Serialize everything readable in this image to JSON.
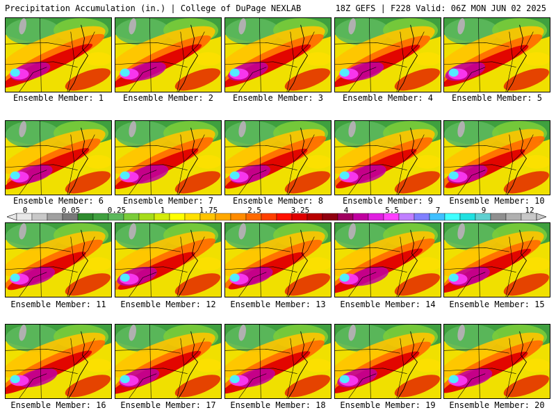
{
  "header": {
    "left_title": "Precipitation Accumulation (in.) | College of DuPage NEXLAB",
    "right_title": "18Z GEFS | F228 Valid: 06Z MON JUN 02 2025"
  },
  "panels": [
    {
      "label": "Ensemble Member: 1"
    },
    {
      "label": "Ensemble Member: 2"
    },
    {
      "label": "Ensemble Member: 3"
    },
    {
      "label": "Ensemble Member: 4"
    },
    {
      "label": "Ensemble Member: 5"
    },
    {
      "label": "Ensemble Member: 6"
    },
    {
      "label": "Ensemble Member: 7"
    },
    {
      "label": "Ensemble Member: 8"
    },
    {
      "label": "Ensemble Member: 9"
    },
    {
      "label": "Ensemble Member: 10"
    },
    {
      "label": "Ensemble Member: 11"
    },
    {
      "label": "Ensemble Member: 12"
    },
    {
      "label": "Ensemble Member: 13"
    },
    {
      "label": "Ensemble Member: 14"
    },
    {
      "label": "Ensemble Member: 15"
    },
    {
      "label": "Ensemble Member: 16"
    },
    {
      "label": "Ensemble Member: 17"
    },
    {
      "label": "Ensemble Member: 18"
    },
    {
      "label": "Ensemble Member: 19"
    },
    {
      "label": "Ensemble Member: 20"
    }
  ],
  "colorbar": {
    "tick_labels": [
      "0",
      "0.05",
      "0.25",
      "1",
      "1.75",
      "2.5",
      "3.25",
      "4",
      "5.5",
      "7",
      "9",
      "12"
    ],
    "colors": [
      "#e8e8e8",
      "#c8c8c8",
      "#a0a0a0",
      "#7a7a7a",
      "#2e8b2e",
      "#3fa03f",
      "#5cb85c",
      "#7acc3a",
      "#a6dc1a",
      "#d4ec0a",
      "#ffff00",
      "#ffe000",
      "#ffc400",
      "#ffa800",
      "#ff8c00",
      "#ff6a00",
      "#ff4000",
      "#ff1000",
      "#e00000",
      "#b80000",
      "#900010",
      "#a00060",
      "#c000a0",
      "#e020e0",
      "#ff40ff",
      "#c080ff",
      "#8080ff",
      "#40c0ff",
      "#40ffff",
      "#20e0e0",
      "#60d0d0",
      "#909090",
      "#b0b0b0",
      "#c8c8c8"
    ]
  }
}
